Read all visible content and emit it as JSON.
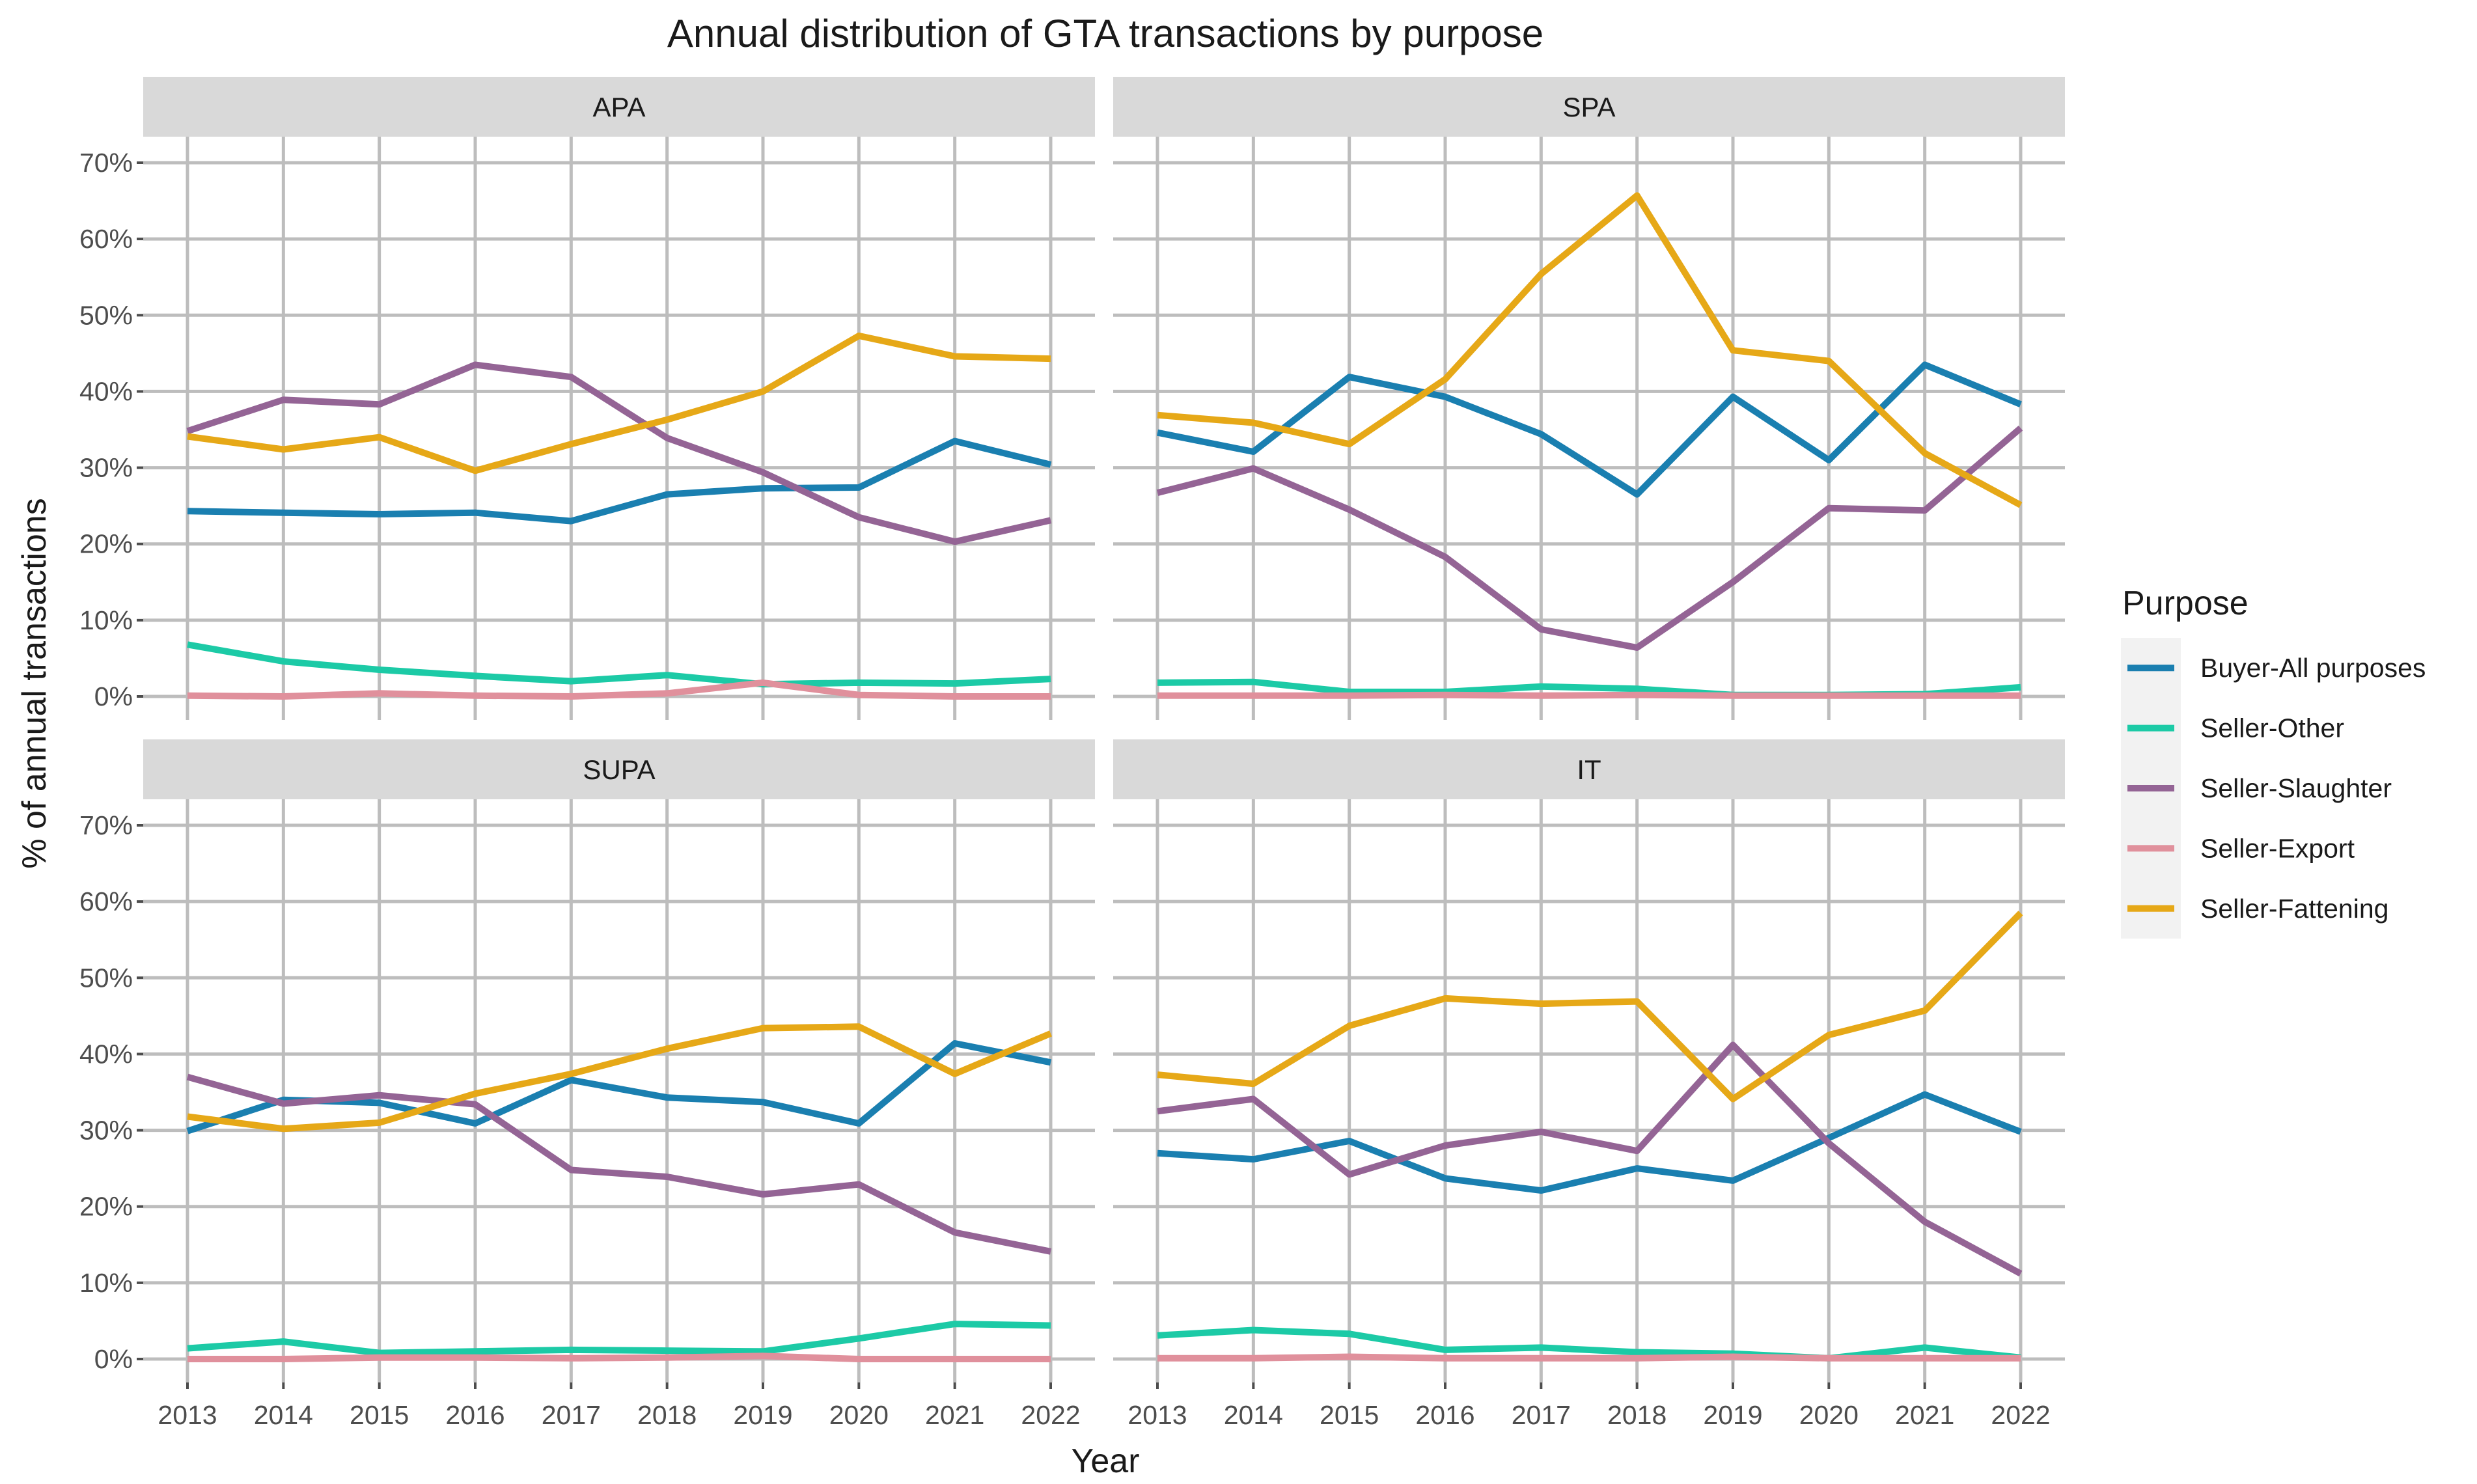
{
  "chart_data": {
    "type": "line",
    "title": "Annual distribution of GTA transactions by purpose",
    "xlabel": "Year",
    "ylabel": "% of annual transactions",
    "x": [
      2013,
      2014,
      2015,
      2016,
      2017,
      2018,
      2019,
      2020,
      2021,
      2022
    ],
    "ylim": [
      0,
      70
    ],
    "yticks": [
      0,
      10,
      20,
      30,
      40,
      50,
      60,
      70
    ],
    "ytick_labels": [
      "0%",
      "10%",
      "20%",
      "30%",
      "40%",
      "50%",
      "60%",
      "70%"
    ],
    "xtick_labels": [
      "2013",
      "2014",
      "2015",
      "2016",
      "2017",
      "2018",
      "2019",
      "2020",
      "2021",
      "2022"
    ],
    "grid": true,
    "legend": {
      "title": "Purpose",
      "position": "right",
      "entries": [
        {
          "name": "Buyer-All purposes",
          "color": "#1a7fb0"
        },
        {
          "name": "Seller-Other",
          "color": "#1ccaa6"
        },
        {
          "name": "Seller-Slaughter",
          "color": "#946495"
        },
        {
          "name": "Seller-Export",
          "color": "#e0909c"
        },
        {
          "name": "Seller-Fattening",
          "color": "#e6a817"
        }
      ]
    },
    "panels": [
      {
        "label": "APA",
        "series": [
          {
            "name": "Buyer-All purposes",
            "values": [
              24.3,
              24.1,
              23.9,
              24.1,
              23.0,
              26.5,
              27.3,
              27.4,
              33.5,
              30.4
            ]
          },
          {
            "name": "Seller-Other",
            "values": [
              6.8,
              4.6,
              3.5,
              2.7,
              2.0,
              2.8,
              1.6,
              1.8,
              1.7,
              2.3
            ]
          },
          {
            "name": "Seller-Slaughter",
            "values": [
              34.8,
              38.9,
              38.3,
              43.5,
              41.9,
              33.9,
              29.4,
              23.5,
              20.3,
              23.1
            ]
          },
          {
            "name": "Seller-Export",
            "values": [
              0.1,
              0.0,
              0.4,
              0.1,
              0.0,
              0.4,
              1.8,
              0.2,
              0.0,
              0.0
            ]
          },
          {
            "name": "Seller-Fattening",
            "values": [
              34.1,
              32.4,
              34.0,
              29.6,
              33.1,
              36.3,
              40.0,
              47.3,
              44.6,
              44.3
            ]
          }
        ]
      },
      {
        "label": "SPA",
        "series": [
          {
            "name": "Buyer-All purposes",
            "values": [
              34.6,
              32.1,
              41.9,
              39.3,
              34.4,
              26.5,
              39.3,
              31.0,
              43.5,
              38.3
            ]
          },
          {
            "name": "Seller-Other",
            "values": [
              1.8,
              1.9,
              0.6,
              0.6,
              1.3,
              1.0,
              0.2,
              0.2,
              0.3,
              1.2
            ]
          },
          {
            "name": "Seller-Slaughter",
            "values": [
              26.7,
              29.9,
              24.5,
              18.3,
              8.8,
              6.4,
              15.0,
              24.7,
              24.4,
              35.2
            ]
          },
          {
            "name": "Seller-Export",
            "values": [
              0.1,
              0.1,
              0.1,
              0.2,
              0.1,
              0.2,
              0.1,
              0.1,
              0.1,
              0.1
            ]
          },
          {
            "name": "Seller-Fattening",
            "values": [
              36.9,
              35.9,
              33.1,
              41.6,
              55.4,
              65.7,
              45.4,
              44.0,
              31.9,
              25.1
            ]
          }
        ]
      },
      {
        "label": "SUPA",
        "series": [
          {
            "name": "Buyer-All purposes",
            "values": [
              29.9,
              34.0,
              33.6,
              30.9,
              36.6,
              34.3,
              33.7,
              30.9,
              41.4,
              38.9
            ]
          },
          {
            "name": "Seller-Other",
            "values": [
              1.4,
              2.3,
              0.8,
              1.0,
              1.2,
              1.1,
              1.0,
              2.7,
              4.6,
              4.4
            ]
          },
          {
            "name": "Seller-Slaughter",
            "values": [
              37.0,
              33.5,
              34.6,
              33.4,
              24.8,
              23.9,
              21.6,
              22.9,
              16.6,
              14.1
            ]
          },
          {
            "name": "Seller-Export",
            "values": [
              0.0,
              0.0,
              0.2,
              0.2,
              0.1,
              0.2,
              0.4,
              0.0,
              0.0,
              0.0
            ]
          },
          {
            "name": "Seller-Fattening",
            "values": [
              31.8,
              30.2,
              31.0,
              34.8,
              37.4,
              40.7,
              43.4,
              43.6,
              37.4,
              42.7
            ]
          }
        ]
      },
      {
        "label": "IT",
        "series": [
          {
            "name": "Buyer-All purposes",
            "values": [
              27.0,
              26.2,
              28.6,
              23.7,
              22.1,
              25.0,
              23.4,
              29.0,
              34.7,
              29.8
            ]
          },
          {
            "name": "Seller-Other",
            "values": [
              3.1,
              3.8,
              3.3,
              1.2,
              1.5,
              0.9,
              0.7,
              0.1,
              1.5,
              0.2
            ]
          },
          {
            "name": "Seller-Slaughter",
            "values": [
              32.5,
              34.1,
              24.2,
              28.0,
              29.8,
              27.3,
              41.2,
              28.3,
              18.0,
              11.2
            ]
          },
          {
            "name": "Seller-Export",
            "values": [
              0.1,
              0.1,
              0.3,
              0.1,
              0.1,
              0.1,
              0.3,
              0.1,
              0.1,
              0.1
            ]
          },
          {
            "name": "Seller-Fattening",
            "values": [
              37.3,
              36.1,
              43.7,
              47.3,
              46.6,
              46.9,
              34.1,
              42.5,
              45.7,
              58.5
            ]
          }
        ]
      }
    ]
  }
}
